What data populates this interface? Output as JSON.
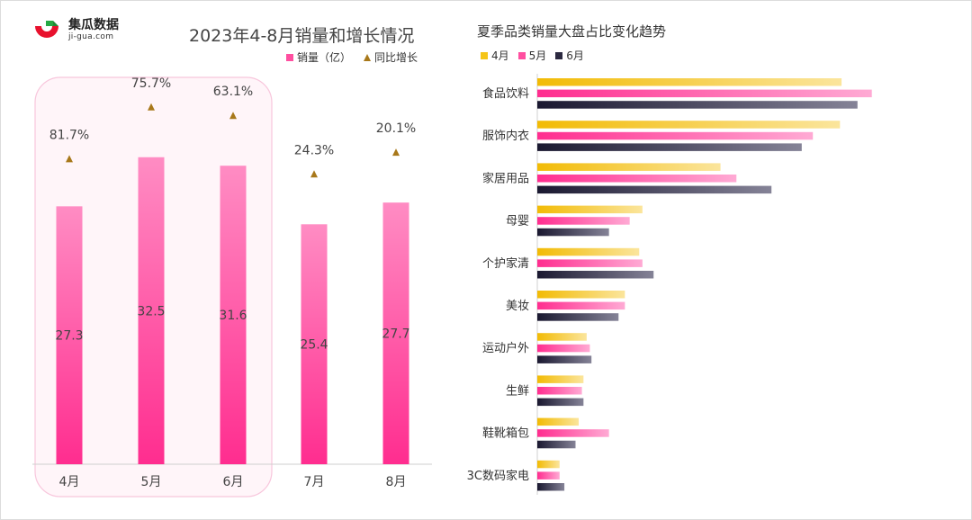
{
  "logo": {
    "name": "集瓜数据",
    "domain": "ji-gua.com"
  },
  "colors": {
    "pink": "#ff4fa0",
    "gold": "#f5c518",
    "dark": "#2b2940",
    "triangle": "#a8781a",
    "highlight": "#fde8f2"
  },
  "chart_data": [
    {
      "type": "bar",
      "title": "2023年4-8月销量和增长情况",
      "categories": [
        "4月",
        "5月",
        "6月",
        "7月",
        "8月"
      ],
      "series": [
        {
          "name": "销量（亿）",
          "values": [
            27.3,
            32.5,
            31.6,
            25.4,
            27.7
          ]
        },
        {
          "name": "同比增长",
          "values": [
            81.7,
            75.7,
            63.1,
            24.3,
            20.1
          ]
        }
      ],
      "value_labels": [
        "27.3",
        "32.5",
        "31.6",
        "25.4",
        "27.7"
      ],
      "growth_labels": [
        "81.7%",
        "75.7%",
        "63.1%",
        "24.3%",
        "20.1%"
      ],
      "highlighted_categories": [
        "4月",
        "5月",
        "6月"
      ],
      "legend_position": "top-right"
    },
    {
      "type": "bar",
      "orientation": "horizontal",
      "title": "夏季品类销量大盘占比变化趋势",
      "categories": [
        "食品饮料",
        "服饰内衣",
        "家居用品",
        "母婴",
        "个护家清",
        "美妆",
        "运动户外",
        "生鲜",
        "鞋靴箱包",
        "3C数码家电"
      ],
      "series": [
        {
          "name": "4月",
          "values": [
            19.1,
            19.0,
            11.5,
            6.6,
            6.4,
            5.5,
            3.1,
            2.9,
            2.6,
            1.4
          ]
        },
        {
          "name": "5月",
          "values": [
            21.0,
            17.3,
            12.5,
            5.8,
            6.6,
            5.5,
            3.3,
            2.8,
            4.5,
            1.4
          ]
        },
        {
          "name": "6月",
          "values": [
            20.1,
            16.6,
            14.7,
            4.5,
            7.3,
            5.1,
            3.4,
            2.9,
            2.4,
            1.7
          ]
        }
      ],
      "legend_position": "top-left"
    }
  ]
}
